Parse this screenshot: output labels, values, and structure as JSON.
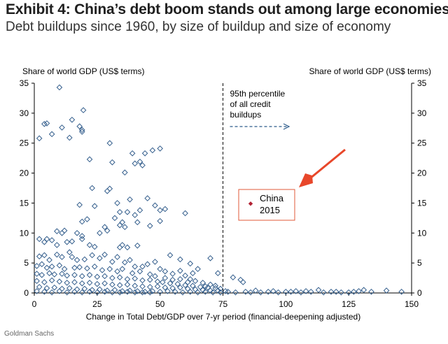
{
  "title": "Exhibit 4: China’s debt boom stands out among large economies",
  "subtitle": "Debt buildups since 1960, by size of buildup and size of economy",
  "source": "Goldman Sachs",
  "colors": {
    "marker": "#355f8d",
    "china": "#b22234",
    "arrow": "#e8472a",
    "dashed_arrow": "#2b5a8a"
  },
  "chart_data": {
    "type": "scatter",
    "xlabel": "Change in Total Debt/GDP over 7-yr period (financial-deepening adjusted)",
    "ylabel_left": "Share of world GDP (US$ terms)",
    "ylabel_right": "Share of world GDP (US$ terms)",
    "xlim": [
      0,
      150
    ],
    "ylim": [
      0,
      35
    ],
    "xticks": [
      0,
      25,
      50,
      75,
      100,
      125,
      150
    ],
    "yticks": [
      0,
      5,
      10,
      15,
      20,
      25,
      30,
      35
    ],
    "grid": false,
    "threshold": {
      "x": 75,
      "label_lines": [
        "95th percentile",
        "of all credit",
        "buildups"
      ]
    },
    "highlight": {
      "label_lines": [
        "China",
        "2015"
      ]
    },
    "series": [
      {
        "points": [
          [
            10,
            34.3
          ],
          [
            2,
            25.8
          ],
          [
            4,
            28.2
          ],
          [
            5,
            28.3
          ],
          [
            7,
            26.5
          ],
          [
            11,
            27.6
          ],
          [
            14,
            25.9
          ],
          [
            15,
            28.9
          ],
          [
            18,
            27.8
          ],
          [
            19,
            27.2
          ],
          [
            19.5,
            30.5
          ],
          [
            19,
            26.9
          ],
          [
            22,
            22.3
          ],
          [
            23,
            17.5
          ],
          [
            30,
            25.0
          ],
          [
            31,
            21.8
          ],
          [
            34,
            13.5
          ],
          [
            36,
            20.1
          ],
          [
            39,
            23.3
          ],
          [
            40,
            21.6
          ],
          [
            42,
            21.9
          ],
          [
            43,
            21.3
          ],
          [
            44,
            23.3
          ],
          [
            47,
            23.8
          ],
          [
            50,
            24.1
          ],
          [
            48,
            14.6
          ],
          [
            50,
            13.8
          ],
          [
            52,
            14.0
          ],
          [
            50,
            12.0
          ],
          [
            60,
            13.3
          ],
          [
            29,
            17.0
          ],
          [
            30,
            17.4
          ],
          [
            33,
            15.0
          ],
          [
            38,
            15.6
          ],
          [
            37,
            13.5
          ],
          [
            40,
            13.0
          ],
          [
            41,
            11.8
          ],
          [
            42,
            13.8
          ],
          [
            45,
            15.8
          ],
          [
            35,
            11.8
          ],
          [
            24,
            14.5
          ],
          [
            18,
            14.7
          ],
          [
            19,
            11.9
          ],
          [
            21,
            12.3
          ],
          [
            17,
            10.0
          ],
          [
            19,
            9.5
          ],
          [
            28,
            11.0
          ],
          [
            32,
            12.5
          ],
          [
            34,
            11.3
          ],
          [
            36,
            11.0
          ],
          [
            35,
            8.0
          ],
          [
            37,
            7.6
          ],
          [
            34,
            7.6
          ],
          [
            29,
            10.4
          ],
          [
            26,
            10.0
          ],
          [
            9,
            10.3
          ],
          [
            11,
            10.0
          ],
          [
            12,
            10.4
          ],
          [
            2,
            9.0
          ],
          [
            4,
            8.5
          ],
          [
            5,
            9.0
          ],
          [
            7,
            8.8
          ],
          [
            9,
            8.0
          ],
          [
            13,
            8.5
          ],
          [
            15,
            8.6
          ],
          [
            19,
            9.0
          ],
          [
            22,
            8.0
          ],
          [
            24,
            7.7
          ],
          [
            41,
            7.9
          ],
          [
            46,
            11.2
          ],
          [
            54,
            6.3
          ],
          [
            58,
            5.6
          ],
          [
            62,
            4.9
          ],
          [
            65,
            4.0
          ],
          [
            70,
            5.8
          ],
          [
            62,
            2.3
          ],
          [
            68,
            1.1
          ],
          [
            73,
            3.3
          ],
          [
            79,
            2.6
          ],
          [
            82,
            2.2
          ],
          [
            83,
            1.8
          ],
          [
            88,
            0.4
          ],
          [
            95,
            0.3
          ],
          [
            100,
            0.2
          ],
          [
            104,
            0.3
          ],
          [
            110,
            0.2
          ],
          [
            113,
            0.5
          ],
          [
            118,
            0.2
          ],
          [
            122,
            0.1
          ],
          [
            127,
            0.2
          ],
          [
            131,
            0.5
          ],
          [
            140,
            0.4
          ],
          [
            146,
            0.2
          ],
          [
            2,
            6.1
          ],
          [
            4,
            6.3
          ],
          [
            6,
            5.5
          ],
          [
            9,
            6.4
          ],
          [
            11,
            6.0
          ],
          [
            14,
            6.8
          ],
          [
            15,
            6.0
          ],
          [
            17,
            5.5
          ],
          [
            20,
            5.6
          ],
          [
            23,
            6.3
          ],
          [
            26,
            5.8
          ],
          [
            28,
            6.4
          ],
          [
            31,
            5.2
          ],
          [
            33,
            6.0
          ],
          [
            36,
            5.1
          ],
          [
            38,
            5.5
          ],
          [
            40,
            4.4
          ],
          [
            43,
            4.4
          ],
          [
            45,
            4.8
          ],
          [
            48,
            5.2
          ],
          [
            50,
            4.0
          ],
          [
            52,
            3.6
          ],
          [
            55,
            3.2
          ],
          [
            58,
            3.7
          ],
          [
            60,
            2.9
          ],
          [
            63,
            3.3
          ],
          [
            1,
            4.5
          ],
          [
            3,
            4.8
          ],
          [
            5,
            4.2
          ],
          [
            7,
            4.4
          ],
          [
            10,
            4.6
          ],
          [
            12,
            4.0
          ],
          [
            16,
            4.2
          ],
          [
            18,
            4.3
          ],
          [
            21,
            4.1
          ],
          [
            24,
            4.4
          ],
          [
            27,
            3.8
          ],
          [
            30,
            4.0
          ],
          [
            33,
            3.6
          ],
          [
            35,
            4.0
          ],
          [
            39,
            3.3
          ],
          [
            42,
            3.6
          ],
          [
            46,
            3.1
          ],
          [
            48,
            2.8
          ],
          [
            52,
            2.5
          ],
          [
            55,
            2.2
          ],
          [
            58,
            2.3
          ],
          [
            61,
            1.8
          ],
          [
            64,
            2.0
          ],
          [
            67,
            1.7
          ],
          [
            70,
            1.4
          ],
          [
            72,
            1.2
          ],
          [
            1,
            3.2
          ],
          [
            3,
            3.0
          ],
          [
            6,
            3.3
          ],
          [
            8,
            3.1
          ],
          [
            11,
            3.2
          ],
          [
            13,
            2.9
          ],
          [
            16,
            3.0
          ],
          [
            19,
            2.8
          ],
          [
            22,
            3.0
          ],
          [
            25,
            2.7
          ],
          [
            28,
            2.8
          ],
          [
            31,
            2.5
          ],
          [
            34,
            2.6
          ],
          [
            37,
            2.3
          ],
          [
            40,
            2.4
          ],
          [
            43,
            2.1
          ],
          [
            46,
            2.2
          ],
          [
            49,
            1.9
          ],
          [
            51,
            1.8
          ],
          [
            54,
            1.6
          ],
          [
            57,
            1.5
          ],
          [
            60,
            1.3
          ],
          [
            63,
            1.2
          ],
          [
            66,
            1.0
          ],
          [
            69,
            0.9
          ],
          [
            72,
            0.8
          ],
          [
            74,
            0.7
          ],
          [
            1,
            2.0
          ],
          [
            4,
            1.8
          ],
          [
            7,
            2.1
          ],
          [
            10,
            1.9
          ],
          [
            13,
            1.7
          ],
          [
            16,
            1.8
          ],
          [
            19,
            1.6
          ],
          [
            22,
            1.7
          ],
          [
            25,
            1.5
          ],
          [
            28,
            1.6
          ],
          [
            31,
            1.4
          ],
          [
            34,
            1.3
          ],
          [
            37,
            1.4
          ],
          [
            40,
            1.2
          ],
          [
            43,
            1.1
          ],
          [
            46,
            1.0
          ],
          [
            49,
            1.1
          ],
          [
            52,
            0.9
          ],
          [
            55,
            0.8
          ],
          [
            58,
            0.9
          ],
          [
            61,
            0.7
          ],
          [
            64,
            0.6
          ],
          [
            67,
            0.5
          ],
          [
            70,
            0.4
          ],
          [
            73,
            0.4
          ],
          [
            76,
            0.3
          ],
          [
            2,
            1.0
          ],
          [
            5,
            0.8
          ],
          [
            8,
            0.9
          ],
          [
            11,
            0.7
          ],
          [
            14,
            0.8
          ],
          [
            17,
            0.6
          ],
          [
            20,
            0.7
          ],
          [
            23,
            0.5
          ],
          [
            26,
            0.6
          ],
          [
            29,
            0.4
          ],
          [
            32,
            0.5
          ],
          [
            35,
            0.3
          ],
          [
            38,
            0.4
          ],
          [
            41,
            0.3
          ],
          [
            44,
            0.2
          ],
          [
            47,
            0.3
          ],
          [
            50,
            0.2
          ],
          [
            53,
            0.3
          ],
          [
            56,
            0.2
          ],
          [
            59,
            0.1
          ],
          [
            62,
            0.2
          ],
          [
            65,
            0.1
          ],
          [
            68,
            0.2
          ],
          [
            71,
            0.1
          ],
          [
            74,
            0.1
          ],
          [
            77,
            0.2
          ],
          [
            80,
            0.1
          ],
          [
            84,
            0.2
          ],
          [
            86,
            0.1
          ],
          [
            90,
            0.1
          ],
          [
            93,
            0.2
          ],
          [
            97,
            0.1
          ],
          [
            102,
            0.2
          ],
          [
            106,
            0.1
          ],
          [
            108,
            0.3
          ],
          [
            115,
            0.1
          ],
          [
            120,
            0.2
          ],
          [
            125,
            0.1
          ],
          [
            129,
            0.3
          ],
          [
            134,
            0.2
          ],
          [
            1,
            0.3
          ],
          [
            4,
            0.2
          ],
          [
            7,
            0.1
          ],
          [
            10,
            0.3
          ],
          [
            13,
            0.1
          ],
          [
            16,
            0.2
          ],
          [
            19,
            0.1
          ],
          [
            22,
            0.2
          ],
          [
            25,
            0.1
          ],
          [
            28,
            0.2
          ],
          [
            31,
            0.1
          ],
          [
            34,
            0.1
          ],
          [
            37,
            0.2
          ],
          [
            40,
            0.1
          ],
          [
            43,
            0.1
          ],
          [
            46,
            0.1
          ]
        ]
      },
      {
        "points": [
          [
            86,
            14.9
          ]
        ]
      }
    ]
  }
}
